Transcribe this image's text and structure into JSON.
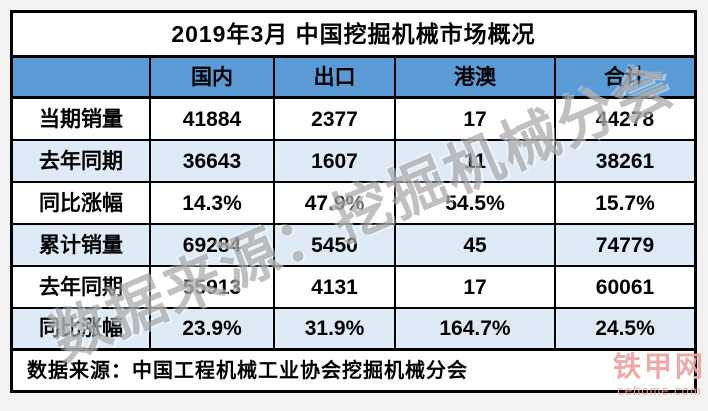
{
  "chart_data": {
    "type": "table",
    "title": "2019年3月 中国挖掘机械市场概况",
    "columns": [
      "",
      "国内",
      "出口",
      "港澳",
      "合计"
    ],
    "rows": [
      {
        "label": "当期销量",
        "values": [
          "41884",
          "2377",
          "17",
          "44278"
        ]
      },
      {
        "label": "去年同期",
        "values": [
          "36643",
          "1607",
          "11",
          "38261"
        ]
      },
      {
        "label": "同比涨幅",
        "values": [
          "14.3%",
          "47.9%",
          "54.5%",
          "15.7%"
        ]
      },
      {
        "label": "累计销量",
        "values": [
          "69284",
          "5450",
          "45",
          "74779"
        ]
      },
      {
        "label": "去年同期",
        "values": [
          "55913",
          "4131",
          "17",
          "60061"
        ]
      },
      {
        "label": "同比涨幅",
        "values": [
          "23.9%",
          "31.9%",
          "164.7%",
          "24.5%"
        ]
      }
    ],
    "footer_note": "数据来源：中国工程机械工业协会挖掘机械分会",
    "layout": {
      "banded_rows": true,
      "header_row_position": "top",
      "grid": true
    }
  },
  "watermark": {
    "text": "数据来源：挖掘机械分会"
  },
  "logo": {
    "title": "铁甲网",
    "domain": "cehome.com"
  },
  "colors": {
    "header_bg": "#5B9BD5",
    "band_row_bg": "#DEEAF6",
    "table_bg": "#FFFFFF",
    "border": "#000000",
    "page_bg": "#F3F2F2",
    "text": "#000000",
    "watermark": "#8C8C8C",
    "logo": "#F0A1A1"
  }
}
